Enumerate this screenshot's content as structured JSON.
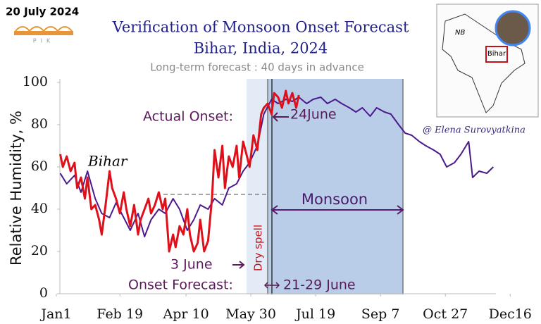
{
  "date_stamp": "20 July 2024",
  "logo": "PIK",
  "inset_map": {
    "labels": [
      "NB",
      "Bihar"
    ]
  },
  "chart_data": {
    "type": "line",
    "title": "Verification of Monsoon Onset Forecast",
    "subtitle": "Bihar, India, 2024",
    "note": "Long-term forecast : 40 days in advance",
    "ylabel": "Relative Humidity, %",
    "credit": "@ Elena Surovyatkina",
    "annotations": {
      "region": "Bihar",
      "actual_onset": "Actual Onset:",
      "actual_onset_date": "24June",
      "monsoon": "Monsoon",
      "break_date": "3 June",
      "dry_spell": "Dry spell",
      "forecast": "Onset Forecast:",
      "forecast_dates": "21-29 June"
    },
    "xlim": [
      1,
      340
    ],
    "xticks": [
      {
        "value": 1,
        "label": "Jan1"
      },
      {
        "value": 50,
        "label": "Feb 19"
      },
      {
        "value": 101,
        "label": "Apr 10"
      },
      {
        "value": 151,
        "label": "May 30"
      },
      {
        "value": 201,
        "label": "Jul 19"
      },
      {
        "value": 251,
        "label": "Sep 7"
      },
      {
        "value": 301,
        "label": "Oct 27"
      },
      {
        "value": 351,
        "label": "Dec16"
      }
    ],
    "ylim": [
      0,
      100
    ],
    "yticks": [
      0,
      20,
      40,
      60,
      80,
      100
    ],
    "series": [
      {
        "color": "#4b1a8c",
        "x": [
          4,
          9,
          15,
          20,
          25,
          31,
          36,
          42,
          47,
          53,
          58,
          64,
          69,
          74,
          80,
          85,
          91,
          96,
          102,
          107,
          112,
          118,
          123,
          129,
          134,
          140,
          145,
          150,
          156,
          161,
          167,
          172,
          178,
          183,
          188,
          194,
          199,
          205,
          210,
          216,
          221,
          227,
          232,
          237,
          243,
          248,
          254,
          259,
          265,
          270,
          275,
          281,
          286,
          292,
          297,
          302,
          308,
          313,
          319,
          322,
          327,
          333,
          338
        ],
        "values": [
          57,
          52,
          56,
          48,
          58,
          45,
          38,
          36,
          43,
          36,
          30,
          38,
          27,
          35,
          40,
          38,
          45,
          40,
          30,
          35,
          42,
          40,
          45,
          42,
          50,
          52,
          58,
          62,
          70,
          85,
          92,
          90,
          92,
          91,
          93,
          90,
          92,
          93,
          90,
          92,
          90,
          88,
          86,
          88,
          84,
          88,
          86,
          85,
          80,
          76,
          75,
          72,
          70,
          68,
          66,
          60,
          62,
          66,
          72,
          55,
          58,
          57,
          60
        ]
      },
      {
        "color": "#e0101a",
        "x": [
          4,
          6,
          9,
          12,
          15,
          17,
          20,
          23,
          25,
          28,
          31,
          34,
          36,
          39,
          42,
          44,
          47,
          50,
          53,
          55,
          58,
          61,
          64,
          66,
          69,
          72,
          74,
          77,
          80,
          83,
          85,
          88,
          91,
          93,
          96,
          99,
          102,
          104,
          107,
          110,
          112,
          115,
          118,
          121,
          123,
          126,
          129,
          131,
          134,
          137,
          140,
          142,
          145,
          148,
          150,
          153,
          156,
          159,
          161,
          164,
          167,
          169,
          172,
          175,
          178,
          180,
          183,
          186,
          188
        ],
        "values": [
          66,
          60,
          65,
          58,
          62,
          50,
          55,
          45,
          55,
          40,
          42,
          35,
          28,
          42,
          58,
          50,
          45,
          38,
          48,
          40,
          32,
          42,
          28,
          35,
          40,
          45,
          38,
          42,
          48,
          40,
          45,
          20,
          28,
          22,
          32,
          28,
          40,
          28,
          20,
          24,
          35,
          20,
          25,
          45,
          68,
          55,
          70,
          50,
          65,
          60,
          70,
          55,
          72,
          65,
          60,
          75,
          68,
          85,
          88,
          90,
          85,
          95,
          93,
          88,
          96,
          90,
          95,
          88,
          94
        ]
      }
    ]
  }
}
